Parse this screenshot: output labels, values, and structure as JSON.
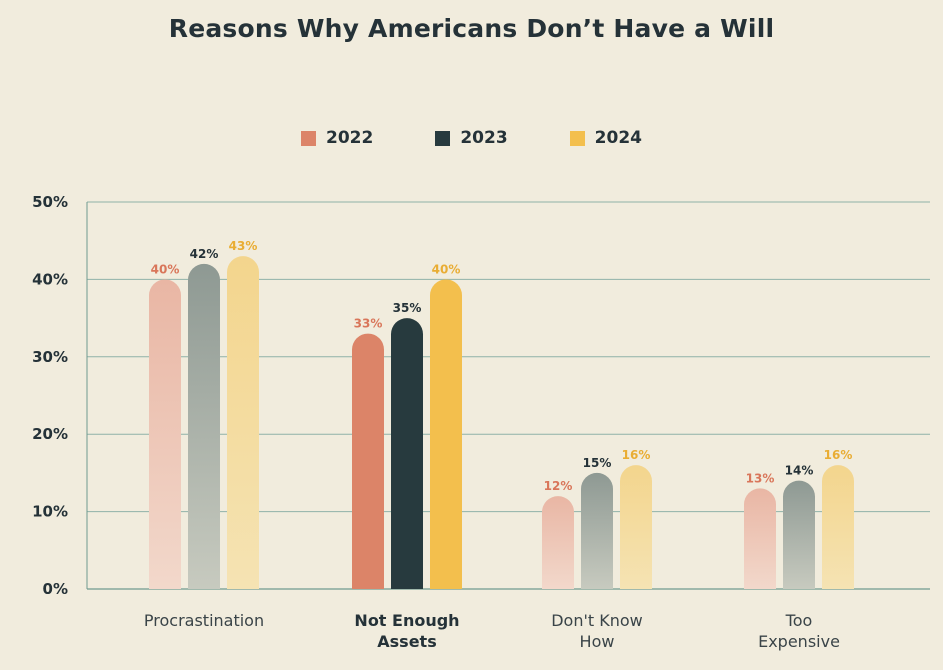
{
  "chart_data": {
    "type": "bar",
    "title": "Reasons Why Americans Don’t Have a Will",
    "xlabel": "",
    "ylabel": "",
    "ylim": [
      0,
      50
    ],
    "yticks": [
      "0%",
      "10%",
      "20%",
      "30%",
      "40%",
      "50%"
    ],
    "categories": [
      [
        "Procrastination"
      ],
      [
        "Not Enough",
        "Assets"
      ],
      [
        "Don't Know",
        "How"
      ],
      [
        "Too",
        "Expensive"
      ]
    ],
    "highlighted_category": 1,
    "series": [
      {
        "name": "2022",
        "color": "#dc8468",
        "faded_top": "#e9b6a4",
        "faded_bottom": "#f2d8cb",
        "values": [
          40,
          33,
          12,
          13
        ],
        "labels": [
          "40%",
          "33%",
          "12%",
          "13%"
        ],
        "label_color": "#d9765a"
      },
      {
        "name": "2023",
        "color": "#273a3e",
        "faded_top": "#8e9993",
        "faded_bottom": "#c7cabf",
        "values": [
          42,
          35,
          15,
          14
        ],
        "labels": [
          "42%",
          "35%",
          "15%",
          "14%"
        ],
        "label_color": "#253238"
      },
      {
        "name": "2024",
        "color": "#f3bf4d",
        "faded_top": "#f3d58d",
        "faded_bottom": "#f5e3b3",
        "values": [
          43,
          40,
          16,
          16
        ],
        "labels": [
          "43%",
          "40%",
          "16%",
          "16%"
        ],
        "label_color": "#e9ad34"
      }
    ],
    "grid": true,
    "legend_position": "top-center"
  }
}
